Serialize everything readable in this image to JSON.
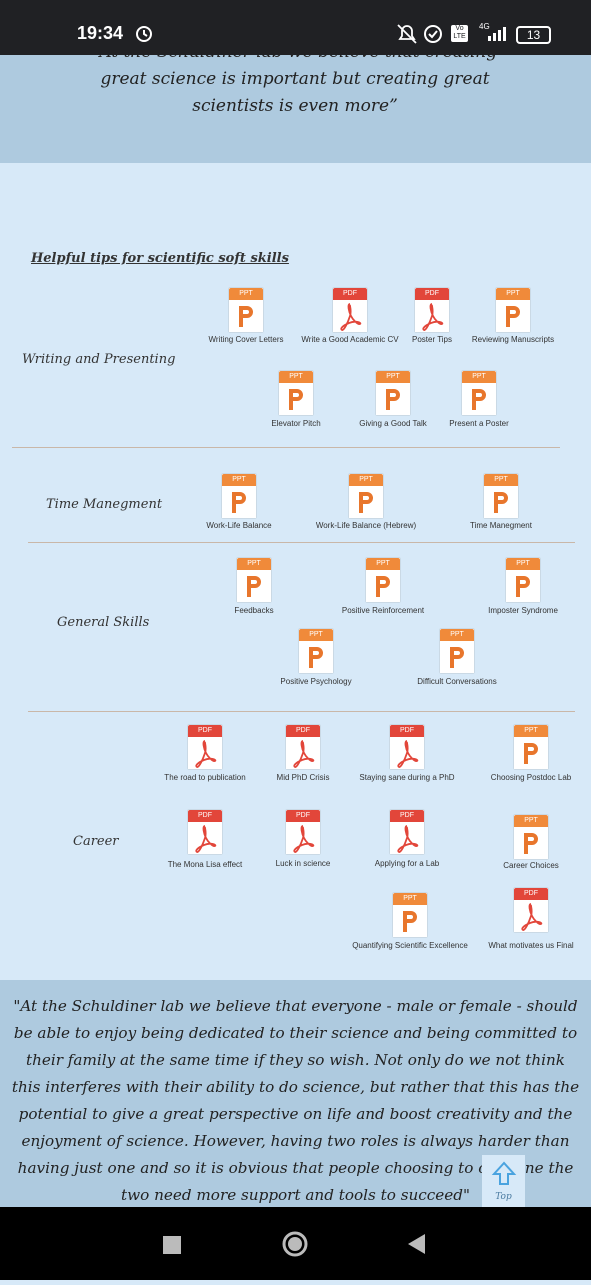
{
  "status_bar": {
    "time": "19:34",
    "volte_top": "Vo",
    "volte_bottom": "LTE",
    "network": "4G",
    "battery": "13"
  },
  "top_quote": "“At the Schuldiner lab we believe that creating great science is important but creating great scientists is even more”",
  "heading": "Helpful tips for scientific soft skills",
  "sections": [
    {
      "title": "Writing and Presenting",
      "items": [
        {
          "type": "PPT",
          "label": "Writing Cover Letters"
        },
        {
          "type": "PDF",
          "label": "Write a Good Academic CV"
        },
        {
          "type": "PDF",
          "label": "Poster Tips"
        },
        {
          "type": "PPT",
          "label": "Reviewing Manuscripts"
        },
        {
          "type": "PPT",
          "label": "Elevator Pitch"
        },
        {
          "type": "PPT",
          "label": "Giving a Good Talk"
        },
        {
          "type": "PPT",
          "label": "Present a Poster"
        }
      ]
    },
    {
      "title": "Time Manegment",
      "items": [
        {
          "type": "PPT",
          "label": "Work-Life Balance"
        },
        {
          "type": "PPT",
          "label": "Work-Life Balance (Hebrew)"
        },
        {
          "type": "PPT",
          "label": "Time Manegment"
        }
      ]
    },
    {
      "title": "General Skills",
      "items": [
        {
          "type": "PPT",
          "label": "Feedbacks"
        },
        {
          "type": "PPT",
          "label": "Positive Reinforcement"
        },
        {
          "type": "PPT",
          "label": "Imposter Syndrome"
        },
        {
          "type": "PPT",
          "label": "Positive Psychology"
        },
        {
          "type": "PPT",
          "label": "Difficult Conversations"
        }
      ]
    },
    {
      "title": "Career",
      "items": [
        {
          "type": "PDF",
          "label": "The road to publication"
        },
        {
          "type": "PDF",
          "label": "Mid PhD Crisis"
        },
        {
          "type": "PDF",
          "label": "Staying sane during a PhD"
        },
        {
          "type": "PPT",
          "label": "Choosing Postdoc Lab"
        },
        {
          "type": "PDF",
          "label": "The Mona Lisa effect"
        },
        {
          "type": "PDF",
          "label": "Luck in science"
        },
        {
          "type": "PDF",
          "label": "Applying for a Lab"
        },
        {
          "type": "PPT",
          "label": "Career Choices"
        },
        {
          "type": "PPT",
          "label": "Quantifying Scientific Excellence"
        },
        {
          "type": "PDF",
          "label": "What motivates us Final"
        }
      ]
    }
  ],
  "bottom_quote": "\"At the Schuldiner lab we believe that everyone - male or female -  should be able to enjoy being dedicated to their science and being committed to their family at the same time if they so wish. Not only do we not think this interferes with their ability to do science, but rather that this has the potential to give a great perspective on life and boost creativity and the enjoyment of science. However, having two roles is always harder than having just one and so it is obvious that people choosing to combine the two need more support and tools to succeed\"",
  "top_button": "Top"
}
